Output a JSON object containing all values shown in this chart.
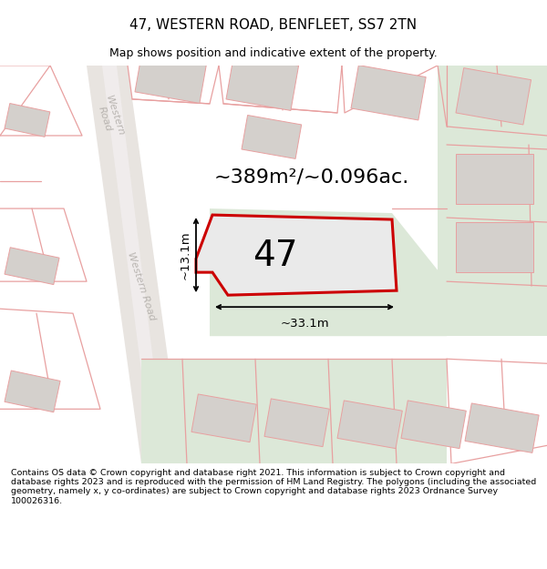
{
  "title": "47, WESTERN ROAD, BENFLEET, SS7 2TN",
  "subtitle": "Map shows position and indicative extent of the property.",
  "area_label": "~389m²/~0.096ac.",
  "number_label": "47",
  "width_label": "~33.1m",
  "height_label": "~13.1m",
  "footer": "Contains OS data © Crown copyright and database right 2021. This information is subject to Crown copyright and database rights 2023 and is reproduced with the permission of HM Land Registry. The polygons (including the associated geometry, namely x, y co-ordinates) are subject to Crown copyright and database rights 2023 Ordnance Survey 100026316.",
  "map_bg": "#f5f3f1",
  "green_fill": "#dce8d8",
  "building_fill": "#d4d0cc",
  "road_fill": "#e8e4e0",
  "road_edge": "#d0ccc8",
  "red_color": "#cc0000",
  "pink_color": "#e8a0a0",
  "prop_fill": "#eaeaea",
  "road_label_color": "#b8b4b0",
  "title_fontsize": 11,
  "subtitle_fontsize": 9,
  "area_fontsize": 16,
  "number_fontsize": 28
}
